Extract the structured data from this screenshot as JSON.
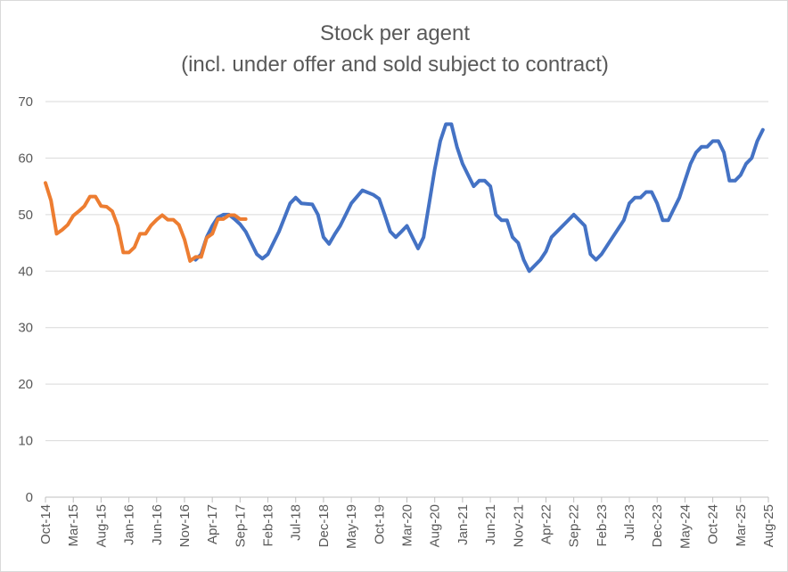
{
  "chart_data": {
    "type": "line",
    "title": "Stock per agent",
    "subtitle": "(incl. under offer and sold subject to contract)",
    "xlabel": "",
    "ylabel": "",
    "ylim": [
      0,
      70
    ],
    "y_ticks": [
      0,
      10,
      20,
      30,
      40,
      50,
      60,
      70
    ],
    "x_tick_labels": [
      "Oct-14",
      "Mar-15",
      "Aug-15",
      "Jan-16",
      "Jun-16",
      "Nov-16",
      "Apr-17",
      "Sep-17",
      "Feb-18",
      "Jul-18",
      "Dec-18",
      "May-19",
      "Oct-19",
      "Mar-20",
      "Aug-20",
      "Jan-21",
      "Jun-21",
      "Nov-21",
      "Apr-22",
      "Sep-22",
      "Feb-23",
      "Jul-23",
      "Dec-23",
      "May-24",
      "Oct-24",
      "Mar-25",
      "Aug-25"
    ],
    "x_start": "Oct-14",
    "x_end": "Aug-25",
    "grid": "horizontal",
    "legend": "none",
    "series": [
      {
        "color": "#ED7D31",
        "points": [
          [
            "Oct-14",
            55.6
          ],
          [
            "Nov-14",
            52.5
          ],
          [
            "Dec-14",
            46.6
          ],
          [
            "Jan-15",
            47.3
          ],
          [
            "Feb-15",
            48.2
          ],
          [
            "Mar-15",
            49.8
          ],
          [
            "Apr-15",
            50.6
          ],
          [
            "May-15",
            51.5
          ],
          [
            "Jun-15",
            53.2
          ],
          [
            "Jul-15",
            53.2
          ],
          [
            "Aug-15",
            51.5
          ],
          [
            "Sep-15",
            51.4
          ],
          [
            "Oct-15",
            50.6
          ],
          [
            "Nov-15",
            48.0
          ],
          [
            "Dec-15",
            43.3
          ],
          [
            "Jan-16",
            43.3
          ],
          [
            "Feb-16",
            44.2
          ],
          [
            "Mar-16",
            46.6
          ],
          [
            "Apr-16",
            46.6
          ],
          [
            "May-16",
            48.1
          ],
          [
            "Jun-16",
            49.1
          ],
          [
            "Jul-16",
            49.9
          ],
          [
            "Aug-16",
            49.1
          ],
          [
            "Sep-16",
            49.1
          ],
          [
            "Oct-16",
            48.2
          ],
          [
            "Nov-16",
            45.6
          ],
          [
            "Dec-16",
            41.8
          ],
          [
            "Jan-17",
            42.5
          ],
          [
            "Feb-17",
            42.5
          ],
          [
            "Mar-17",
            45.9
          ],
          [
            "Apr-17",
            46.6
          ],
          [
            "May-17",
            49.2
          ],
          [
            "Jun-17",
            49.2
          ],
          [
            "Jul-17",
            49.9
          ],
          [
            "Aug-17",
            49.9
          ],
          [
            "Sep-17",
            49.2
          ],
          [
            "Oct-17",
            49.2
          ]
        ]
      },
      {
        "color": "#4472C4",
        "points": [
          [
            "Jan-17",
            42.0
          ],
          [
            "Feb-17",
            43.0
          ],
          [
            "Mar-17",
            46.0
          ],
          [
            "Apr-17",
            48.0
          ],
          [
            "May-17",
            49.5
          ],
          [
            "Jun-17",
            50.0
          ],
          [
            "Jul-17",
            50.0
          ],
          [
            "Aug-17",
            49.2
          ],
          [
            "Sep-17",
            48.3
          ],
          [
            "Oct-17",
            47.0
          ],
          [
            "Dec-17",
            43.0
          ],
          [
            "Jan-18",
            42.2
          ],
          [
            "Feb-18",
            43.0
          ],
          [
            "Apr-18",
            47.0
          ],
          [
            "Jun-18",
            52.0
          ],
          [
            "Jul-18",
            53.0
          ],
          [
            "Aug-18",
            52.0
          ],
          [
            "Oct-18",
            51.8
          ],
          [
            "Nov-18",
            50.0
          ],
          [
            "Dec-18",
            46.0
          ],
          [
            "Jan-19",
            44.8
          ],
          [
            "Feb-19",
            46.5
          ],
          [
            "Mar-19",
            48.0
          ],
          [
            "Apr-19",
            50.0
          ],
          [
            "May-19",
            52.0
          ],
          [
            "Jul-19",
            54.3
          ],
          [
            "Sep-19",
            53.5
          ],
          [
            "Oct-19",
            52.8
          ],
          [
            "Nov-19",
            50.0
          ],
          [
            "Dec-19",
            47.0
          ],
          [
            "Jan-20",
            46.0
          ],
          [
            "Feb-20",
            47.0
          ],
          [
            "Mar-20",
            48.0
          ],
          [
            "Apr-20",
            46.0
          ],
          [
            "May-20",
            44.0
          ],
          [
            "Jun-20",
            46.0
          ],
          [
            "Jul-20",
            52.0
          ],
          [
            "Aug-20",
            58.0
          ],
          [
            "Sep-20",
            63.0
          ],
          [
            "Oct-20",
            66.0
          ],
          [
            "Nov-20",
            66.0
          ],
          [
            "Dec-20",
            62.0
          ],
          [
            "Jan-21",
            59.0
          ],
          [
            "Mar-21",
            55.0
          ],
          [
            "Apr-21",
            56.0
          ],
          [
            "May-21",
            56.0
          ],
          [
            "Jun-21",
            55.0
          ],
          [
            "Jul-21",
            50.0
          ],
          [
            "Aug-21",
            49.0
          ],
          [
            "Sep-21",
            49.0
          ],
          [
            "Oct-21",
            46.0
          ],
          [
            "Nov-21",
            45.0
          ],
          [
            "Dec-21",
            42.0
          ],
          [
            "Jan-22",
            40.0
          ],
          [
            "Mar-22",
            42.0
          ],
          [
            "Apr-22",
            43.5
          ],
          [
            "May-22",
            46.0
          ],
          [
            "Jul-22",
            48.0
          ],
          [
            "Sep-22",
            50.0
          ],
          [
            "Oct-22",
            49.0
          ],
          [
            "Nov-22",
            48.0
          ],
          [
            "Dec-22",
            43.0
          ],
          [
            "Jan-23",
            42.0
          ],
          [
            "Feb-23",
            43.0
          ],
          [
            "Apr-23",
            46.0
          ],
          [
            "Jun-23",
            49.0
          ],
          [
            "Jul-23",
            52.0
          ],
          [
            "Aug-23",
            53.0
          ],
          [
            "Sep-23",
            53.0
          ],
          [
            "Oct-23",
            54.0
          ],
          [
            "Nov-23",
            54.0
          ],
          [
            "Dec-23",
            52.0
          ],
          [
            "Jan-24",
            49.0
          ],
          [
            "Feb-24",
            49.0
          ],
          [
            "Mar-24",
            51.0
          ],
          [
            "Apr-24",
            53.0
          ],
          [
            "May-24",
            56.0
          ],
          [
            "Jun-24",
            59.0
          ],
          [
            "Jul-24",
            61.0
          ],
          [
            "Aug-24",
            62.0
          ],
          [
            "Sep-24",
            62.0
          ],
          [
            "Oct-24",
            63.0
          ],
          [
            "Nov-24",
            63.0
          ],
          [
            "Dec-24",
            61.0
          ],
          [
            "Jan-25",
            56.0
          ],
          [
            "Feb-25",
            56.0
          ],
          [
            "Mar-25",
            57.0
          ],
          [
            "Apr-25",
            59.0
          ],
          [
            "May-25",
            60.0
          ],
          [
            "Jun-25",
            63.0
          ],
          [
            "Jul-25",
            65.0
          ]
        ]
      }
    ]
  }
}
